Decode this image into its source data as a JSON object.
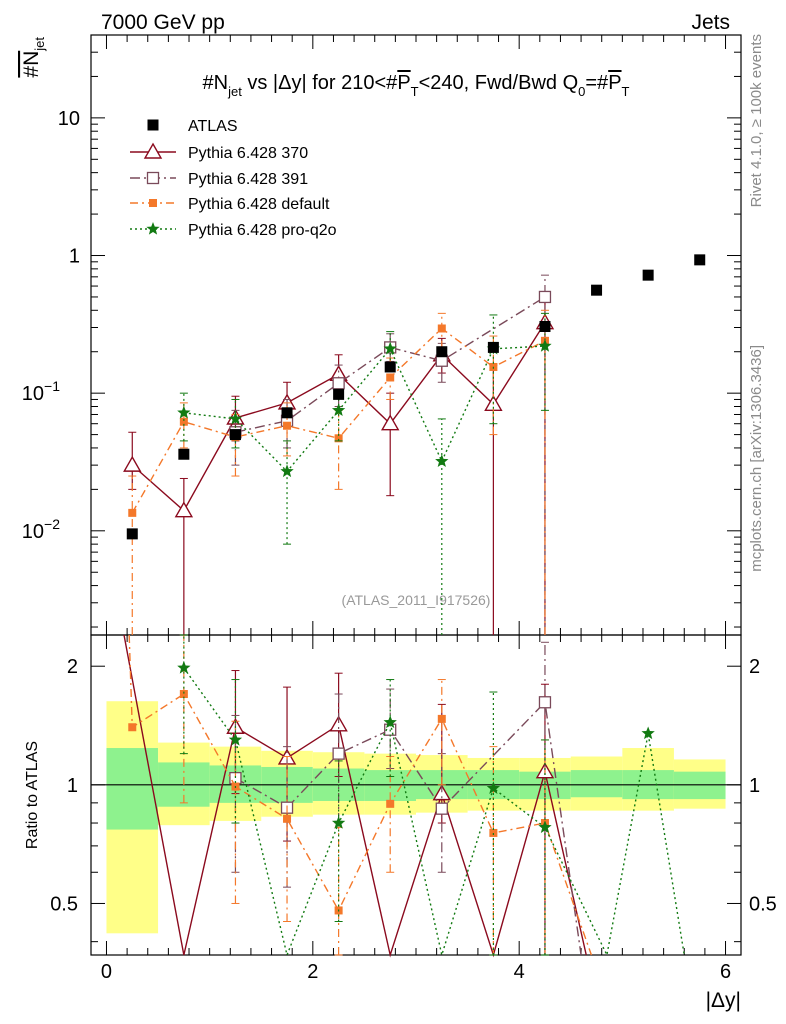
{
  "header": {
    "left": "7000 GeV pp",
    "right": "Jets"
  },
  "side_labels": {
    "rivet": "Rivet 4.1.0, ≥ 100k events",
    "mcplots": "mcplots.cern.ch [arXiv:1306.3436]"
  },
  "chart_data": {
    "type": "scatter",
    "title": "#N_jet vs |Δy| for 210<#P_T<240, Fwd/Bwd Q0=#P_T",
    "title_parts": {
      "a": "#N",
      "a_sub": "jet",
      "b": " vs |Δy|  for 210<#",
      "c": "P",
      "c_sub": "T",
      "d": "<240, Fwd/Bwd Q",
      "d_sub": "0",
      "e": "=#",
      "f": "P",
      "f_sub": "T"
    },
    "watermark": "(ATLAS_2011_I917526)",
    "xlabel": "|Δy|",
    "ylabel": "#N_jet",
    "ylabel_parts": {
      "main": "#N",
      "sub": "jet"
    },
    "ratio_ylabel": "Ratio to ATLAS",
    "xlim": [
      -0.15,
      6.15
    ],
    "ylim": [
      0.00175,
      40
    ],
    "yscale": "log",
    "ratio_ylim": [
      0.37,
      2.4
    ],
    "ratio_yscale": "log",
    "x_ticks": [
      0,
      2,
      4,
      6
    ],
    "x_tick_labels": [
      "0",
      "2",
      "4",
      "6"
    ],
    "y_tick_labels": [
      {
        "v": 10,
        "t": "10"
      },
      {
        "v": 1,
        "t": "1"
      },
      {
        "v": 0.1,
        "t": "10",
        "exp": "−1"
      },
      {
        "v": 0.01,
        "t": "10",
        "exp": "−2"
      }
    ],
    "ratio_tick_labels": [
      {
        "v": 2,
        "t": "2"
      },
      {
        "v": 1,
        "t": "1"
      },
      {
        "v": 0.5,
        "t": "0.5"
      }
    ],
    "atlas_x": [
      0.25,
      0.75,
      1.25,
      1.75,
      2.25,
      2.75,
      3.25,
      3.75,
      4.25,
      4.75,
      5.25,
      5.75
    ],
    "atlas_y": [
      0.0095,
      0.036,
      0.05,
      0.072,
      0.098,
      0.155,
      0.2,
      0.215,
      0.305,
      0.56,
      0.72,
      0.93
    ],
    "band_bins": [
      [
        0.0,
        0.5
      ],
      [
        0.5,
        1.0
      ],
      [
        1.0,
        1.5
      ],
      [
        1.5,
        2.0
      ],
      [
        2.0,
        2.5
      ],
      [
        2.5,
        3.0
      ],
      [
        3.0,
        3.5
      ],
      [
        3.5,
        4.0
      ],
      [
        4.0,
        4.5
      ],
      [
        4.5,
        5.0
      ],
      [
        5.0,
        5.5
      ],
      [
        5.5,
        6.0
      ]
    ],
    "band_stat": [
      [
        0.77,
        1.24
      ],
      [
        0.88,
        1.14
      ],
      [
        0.9,
        1.12
      ],
      [
        0.9,
        1.11
      ],
      [
        0.91,
        1.1
      ],
      [
        0.91,
        1.09
      ],
      [
        0.92,
        1.09
      ],
      [
        0.92,
        1.09
      ],
      [
        0.92,
        1.08
      ],
      [
        0.93,
        1.09
      ],
      [
        0.92,
        1.09
      ],
      [
        0.92,
        1.08
      ]
    ],
    "band_total": [
      [
        0.42,
        1.63
      ],
      [
        0.79,
        1.28
      ],
      [
        0.81,
        1.25
      ],
      [
        0.83,
        1.22
      ],
      [
        0.84,
        1.21
      ],
      [
        0.84,
        1.2
      ],
      [
        0.85,
        1.19
      ],
      [
        0.86,
        1.17
      ],
      [
        0.86,
        1.17
      ],
      [
        0.86,
        1.18
      ],
      [
        0.86,
        1.24
      ],
      [
        0.87,
        1.16
      ]
    ],
    "series": [
      {
        "name": "ATLAS",
        "color": "#000000",
        "marker": "square",
        "x": [
          0.25,
          0.75,
          1.25,
          1.75,
          2.25,
          2.75,
          3.25,
          3.75,
          4.25,
          4.75,
          5.25,
          5.75
        ],
        "y": [
          0.0095,
          0.036,
          0.05,
          0.072,
          0.098,
          0.155,
          0.2,
          0.215,
          0.305,
          0.56,
          0.72,
          0.93
        ]
      },
      {
        "name": "Pythia 6.428 370",
        "color": "#8b0a1e",
        "marker": "triangle-open",
        "dash": "",
        "x": [
          0.25,
          0.75,
          1.25,
          1.75,
          2.25,
          2.75,
          3.25,
          3.75,
          4.25
        ],
        "y": [
          0.03,
          0.014,
          0.066,
          0.085,
          0.137,
          0.06,
          0.19,
          0.083,
          0.325
        ],
        "err_lo": [
          0.02,
          0.0001,
          0.045,
          0.055,
          0.1,
          0.018,
          0.14,
          0.0001,
          0.0001
        ],
        "err_hi": [
          0.052,
          0.024,
          0.095,
          0.12,
          0.19,
          0.1,
          0.25,
          0.16,
          0.5
        ]
      },
      {
        "name": "Pythia 6.428 391",
        "color": "#7a4a5a",
        "marker": "square-open",
        "dash": "10,4,2,4",
        "x": [
          1.25,
          1.75,
          2.25,
          2.75,
          3.25,
          4.25
        ],
        "y": [
          0.052,
          0.063,
          0.118,
          0.215,
          0.172,
          0.5
        ],
        "err_lo": [
          0.03,
          0.04,
          0.08,
          0.17,
          0.12,
          0.0001
        ],
        "err_hi": [
          0.075,
          0.09,
          0.16,
          0.27,
          0.23,
          0.72
        ]
      },
      {
        "name": "Pythia 6.428 default",
        "color": "#f4782a",
        "marker": "square-filled",
        "dash": "8,4,2,4",
        "x": [
          0.25,
          0.75,
          1.25,
          1.75,
          2.25,
          2.75,
          3.25,
          3.75,
          4.25
        ],
        "y": [
          0.0135,
          0.062,
          0.048,
          0.058,
          0.047,
          0.13,
          0.295,
          0.155,
          0.24
        ],
        "err_lo": [
          0.0001,
          0.04,
          0.025,
          0.035,
          0.02,
          0.09,
          0.21,
          0.05,
          0.0001
        ],
        "err_hi": [
          0.025,
          0.085,
          0.07,
          0.085,
          0.075,
          0.18,
          0.38,
          0.26,
          0.4
        ]
      },
      {
        "name": "Pythia 6.428 pro-q2o",
        "color": "#127a12",
        "marker": "star",
        "dash": "2,3",
        "x": [
          0.75,
          1.25,
          1.75,
          2.25,
          2.75,
          3.25,
          3.75,
          4.25
        ],
        "y": [
          0.072,
          0.065,
          0.027,
          0.075,
          0.21,
          0.032,
          0.21,
          0.22
        ],
        "err_lo": [
          0.045,
          0.04,
          0.008,
          0.045,
          0.16,
          0.0001,
          0.06,
          0.075
        ],
        "err_hi": [
          0.1,
          0.09,
          0.045,
          0.1,
          0.28,
          0.065,
          0.37,
          0.38
        ]
      }
    ],
    "ratio_series": [
      {
        "name": "Pythia 6.428 370",
        "color": "#8b0a1e",
        "marker": "triangle-open",
        "dash": "",
        "x": [
          0.17,
          0.75,
          1.25,
          1.75,
          2.25,
          2.75,
          3.25,
          3.75,
          4.25,
          4.65
        ],
        "y": [
          3.1,
          0.36,
          1.4,
          1.17,
          1.42,
          0.35,
          0.95,
          0.35,
          1.08,
          0.35
        ],
        "markers": [
          false,
          false,
          true,
          true,
          true,
          false,
          true,
          false,
          true,
          false
        ],
        "err_lo": [
          0,
          0,
          0.95,
          0.72,
          1.05,
          0,
          0.8,
          0,
          0.3,
          0
        ],
        "err_hi": [
          0,
          0,
          1.95,
          1.77,
          1.92,
          0,
          1.6,
          0,
          1.8,
          0
        ]
      },
      {
        "name": "Pythia 6.428 391",
        "color": "#7a4a5a",
        "marker": "square-open",
        "dash": "10,4,2,4",
        "x": [
          1.25,
          1.75,
          2.25,
          2.75,
          3.25,
          4.25,
          4.6
        ],
        "y": [
          1.04,
          0.875,
          1.2,
          1.38,
          0.87,
          1.62,
          0.35
        ],
        "markers": [
          true,
          true,
          true,
          true,
          true,
          true,
          false
        ],
        "err_lo": [
          0.6,
          0.55,
          0.8,
          1.1,
          0.6,
          0.35,
          0
        ],
        "err_hi": [
          1.5,
          1.25,
          1.7,
          1.75,
          1.2,
          2.3,
          0
        ]
      },
      {
        "name": "Pythia 6.428 default",
        "color": "#f4782a",
        "marker": "square-filled",
        "dash": "8,4,2,4",
        "x": [
          0.22,
          0.25,
          0.75,
          1.25,
          1.75,
          2.25,
          2.75,
          3.25,
          3.75,
          4.25,
          4.7
        ],
        "y": [
          2.5,
          1.4,
          1.7,
          0.99,
          0.82,
          0.48,
          0.895,
          1.47,
          0.755,
          0.8,
          0.35
        ],
        "markers": [
          false,
          true,
          true,
          true,
          true,
          true,
          true,
          true,
          true,
          true,
          false
        ],
        "err_lo": [
          0,
          0,
          0.9,
          0.5,
          0.45,
          0.2,
          0.6,
          1.0,
          0.24,
          0.1,
          0
        ],
        "err_hi": [
          0,
          0,
          2.5,
          1.45,
          1.18,
          0.78,
          1.18,
          1.85,
          1.25,
          1.3,
          0
        ]
      },
      {
        "name": "Pythia 6.428 pro-q2o",
        "color": "#127a12",
        "marker": "star",
        "dash": "2,3",
        "x": [
          0.75,
          1.25,
          1.75,
          2.25,
          2.75,
          3.25,
          3.75,
          4.25,
          4.85,
          5.25,
          5.6
        ],
        "y": [
          1.98,
          1.3,
          0.36,
          0.8,
          1.44,
          0.36,
          0.98,
          0.78,
          0.36,
          1.35,
          0.36
        ],
        "markers": [
          true,
          true,
          false,
          true,
          true,
          false,
          true,
          true,
          false,
          true,
          false
        ],
        "err_lo": [
          1.2,
          0.8,
          0,
          0.45,
          1.05,
          0,
          0.3,
          0.25,
          0,
          0,
          0
        ],
        "err_hi": [
          2.6,
          1.85,
          0,
          1.15,
          1.85,
          0,
          1.72,
          1.3,
          0,
          0,
          0
        ]
      }
    ]
  }
}
